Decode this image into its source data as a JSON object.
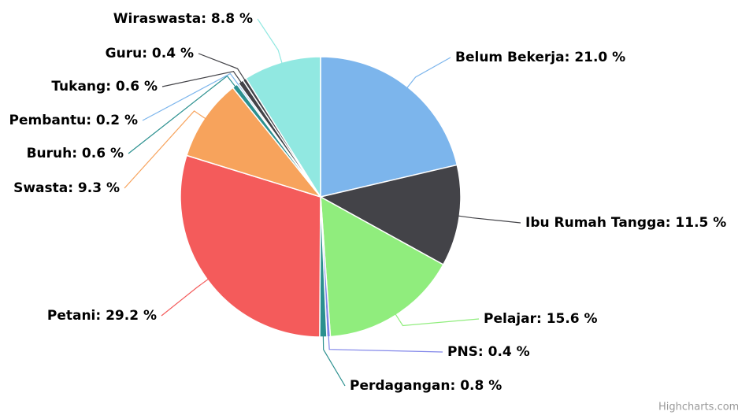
{
  "chart_data": {
    "type": "pie",
    "values": [
      21.0,
      11.5,
      15.6,
      0.4,
      0.8,
      29.2,
      9.3,
      0.6,
      0.2,
      0.6,
      0.4,
      8.8
    ],
    "value_labels": [
      "Belum Bekerja: 21.0 %",
      "Ibu Rumah Tangga: 11.5 %",
      "Pelajar: 15.6 %",
      "PNS: 0.4 %",
      "Perdagangan: 0.8 %",
      "Petani: 29.2 %",
      "Swasta: 9.3 %",
      "Buruh: 0.6 %",
      "Pembantu: 0.2 %",
      "Tukang: 0.6 %",
      "Guru: 0.4 %",
      "Wiraswasta: 8.8 %"
    ],
    "colors": [
      "#7cb5ec",
      "#434348",
      "#90ed7d",
      "#8085e9",
      "#2b908f",
      "#f45b5b",
      "#f7a35c",
      "#2b908f",
      "#7cb5ec",
      "#434348",
      "#434348",
      "#91e8e1"
    ],
    "credits": "Highcharts.com"
  }
}
